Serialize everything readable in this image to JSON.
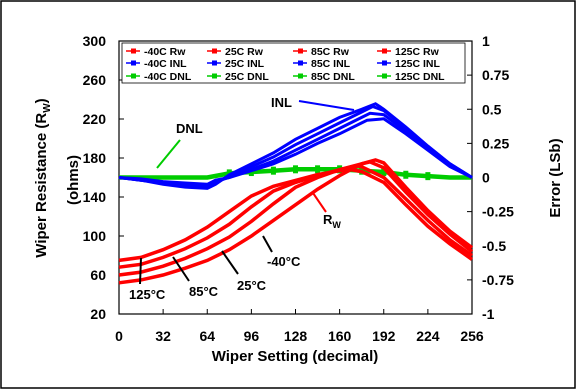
{
  "chart_data": {
    "type": "line",
    "xlabel": "Wiper Setting (decimal)",
    "ylabel_left": "Wiper Resistance (R",
    "ylabel_left_sub": "W",
    "ylabel_left_close": ")",
    "ylabel_left_unit": "(ohms)",
    "ylabel_right": "Error (LSb)",
    "xlim": [
      0,
      256
    ],
    "ylim_left": [
      20,
      300
    ],
    "ylim_right": [
      -1,
      1
    ],
    "x_ticks": [
      0,
      32,
      64,
      96,
      128,
      160,
      192,
      224,
      256
    ],
    "y_left_ticks": [
      20,
      60,
      100,
      140,
      180,
      220,
      260,
      300
    ],
    "y_right_ticks": [
      "-1",
      "-0.75",
      "-0.5",
      "-0.25",
      "0",
      "0.25",
      "0.5",
      "0.75",
      "1"
    ],
    "grid": false,
    "legend_position": "top",
    "legend": [
      {
        "name": "-40C Rw",
        "color": "#ff0000",
        "marker": "diamond"
      },
      {
        "name": "25C Rw",
        "color": "#ff0000",
        "marker": "square"
      },
      {
        "name": "85C Rw",
        "color": "#ff0000",
        "marker": "triangle"
      },
      {
        "name": "125C Rw",
        "color": "#ff0000",
        "marker": "x"
      },
      {
        "name": "-40C INL",
        "color": "#0000ff",
        "marker": "diamond"
      },
      {
        "name": "25C INL",
        "color": "#0000ff",
        "marker": "square"
      },
      {
        "name": "85C INL",
        "color": "#0000ff",
        "marker": "triangle"
      },
      {
        "name": "125C INL",
        "color": "#0000ff",
        "marker": "x"
      },
      {
        "name": "-40C DNL",
        "color": "#00cc00",
        "marker": "diamond"
      },
      {
        "name": "25C DNL",
        "color": "#00cc00",
        "marker": "square"
      },
      {
        "name": "85C DNL",
        "color": "#00cc00",
        "marker": "triangle"
      },
      {
        "name": "125C DNL",
        "color": "#00cc00",
        "marker": "x"
      }
    ],
    "rw_series": [
      {
        "temp": "-40C",
        "axis": "left",
        "x": [
          0,
          16,
          32,
          48,
          64,
          80,
          96,
          112,
          128,
          144,
          160,
          176,
          186,
          192,
          208,
          224,
          240,
          256
        ],
        "y": [
          52,
          55,
          60,
          67,
          75,
          86,
          100,
          116,
          132,
          148,
          162,
          174,
          178,
          175,
          150,
          126,
          105,
          88
        ]
      },
      {
        "temp": "25C",
        "axis": "left",
        "x": [
          0,
          16,
          32,
          48,
          64,
          80,
          96,
          112,
          128,
          144,
          160,
          176,
          182,
          192,
          208,
          224,
          240,
          256
        ],
        "y": [
          60,
          63,
          69,
          77,
          87,
          99,
          115,
          133,
          150,
          160,
          168,
          174,
          176,
          170,
          145,
          122,
          102,
          84
        ]
      },
      {
        "temp": "85C",
        "axis": "left",
        "x": [
          0,
          16,
          32,
          48,
          64,
          80,
          96,
          112,
          128,
          144,
          160,
          172,
          176,
          192,
          208,
          224,
          240,
          256
        ],
        "y": [
          68,
          71,
          78,
          87,
          98,
          112,
          130,
          146,
          155,
          162,
          168,
          172,
          171,
          160,
          138,
          116,
          96,
          80
        ]
      },
      {
        "temp": "125C",
        "axis": "left",
        "x": [
          0,
          16,
          32,
          48,
          64,
          80,
          96,
          112,
          128,
          144,
          160,
          168,
          176,
          192,
          208,
          224,
          240,
          256
        ],
        "y": [
          75,
          78,
          86,
          96,
          109,
          125,
          141,
          151,
          157,
          163,
          167,
          168,
          166,
          155,
          132,
          110,
          92,
          76
        ]
      }
    ],
    "inl_series": [
      {
        "temp": "-40C",
        "axis": "right",
        "x": [
          0,
          16,
          32,
          48,
          64,
          70,
          80,
          96,
          112,
          128,
          144,
          160,
          176,
          186,
          192,
          208,
          224,
          240,
          256
        ],
        "y": [
          0,
          -0.02,
          -0.05,
          -0.07,
          -0.08,
          -0.05,
          0.02,
          0.1,
          0.18,
          0.28,
          0.36,
          0.44,
          0.5,
          0.54,
          0.5,
          0.37,
          0.23,
          0.1,
          0
        ]
      },
      {
        "temp": "25C",
        "axis": "right",
        "x": [
          0,
          16,
          32,
          48,
          64,
          70,
          80,
          96,
          112,
          128,
          144,
          160,
          176,
          184,
          192,
          208,
          224,
          240,
          256
        ],
        "y": [
          0,
          -0.02,
          -0.04,
          -0.06,
          -0.07,
          -0.04,
          0.01,
          0.08,
          0.15,
          0.24,
          0.32,
          0.4,
          0.48,
          0.52,
          0.49,
          0.36,
          0.22,
          0.1,
          0
        ]
      },
      {
        "temp": "85C",
        "axis": "right",
        "x": [
          0,
          16,
          32,
          48,
          64,
          70,
          80,
          96,
          112,
          128,
          144,
          160,
          176,
          182,
          192,
          208,
          224,
          240,
          256
        ],
        "y": [
          0,
          -0.02,
          -0.04,
          -0.05,
          -0.06,
          -0.03,
          0.0,
          0.06,
          0.12,
          0.2,
          0.28,
          0.36,
          0.44,
          0.47,
          0.46,
          0.34,
          0.21,
          0.09,
          0
        ]
      },
      {
        "temp": "125C",
        "axis": "right",
        "x": [
          0,
          16,
          32,
          48,
          64,
          70,
          80,
          96,
          112,
          128,
          144,
          160,
          176,
          180,
          192,
          208,
          224,
          240,
          256
        ],
        "y": [
          0,
          -0.01,
          -0.03,
          -0.04,
          -0.05,
          -0.02,
          0.0,
          0.05,
          0.1,
          0.17,
          0.25,
          0.32,
          0.4,
          0.42,
          0.43,
          0.32,
          0.2,
          0.08,
          0
        ]
      }
    ],
    "dnl_series": [
      {
        "temp": "all",
        "axis": "right",
        "x": [
          0,
          64,
          80,
          96,
          112,
          128,
          144,
          160,
          176,
          192,
          208,
          224,
          240,
          256
        ],
        "y": [
          0,
          0,
          0.03,
          0.04,
          0.05,
          0.06,
          0.06,
          0.06,
          0.05,
          0.04,
          0.02,
          0.01,
          0,
          0
        ]
      }
    ],
    "annotations": {
      "inl": "INL",
      "dnl": "DNL",
      "rw_main": "R",
      "rw_sub": "W",
      "t125": "125°C",
      "t85": "85°C",
      "t25": "25°C",
      "tm40": "-40°C"
    }
  }
}
